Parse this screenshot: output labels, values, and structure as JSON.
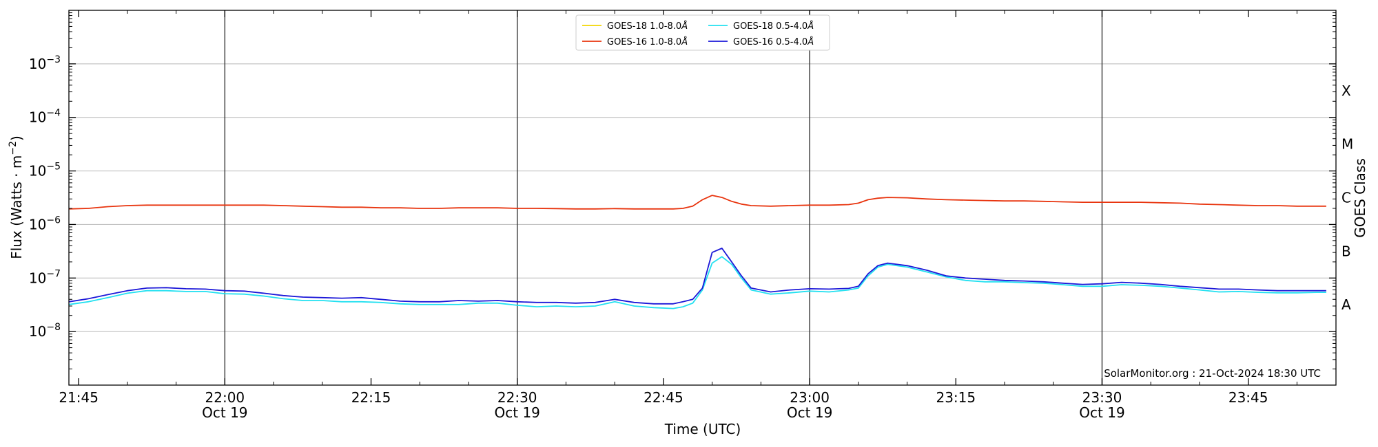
{
  "chart_data": {
    "type": "line",
    "xlabel": "Time (UTC)",
    "ylabel_main": "Flux (Watts · m",
    "ylabel_exp": "−2",
    "ylabel_close": ")",
    "right_axis_label": "GOES Class",
    "credit": "SolarMonitor.org : 21-Oct-2024 18:30 UTC",
    "y_scale": "log",
    "ylim": [
      1e-09,
      0.01
    ],
    "xlim": [
      "21:44",
      "23:54"
    ],
    "grid": "horizontal at decades",
    "legend_placement": "top-center",
    "y_ticks": [
      {
        "value": -8,
        "base": "10",
        "exp": "−8"
      },
      {
        "value": -7,
        "base": "10",
        "exp": "−7"
      },
      {
        "value": -6,
        "base": "10",
        "exp": "−6"
      },
      {
        "value": -5,
        "base": "10",
        "exp": "−5"
      },
      {
        "value": -4,
        "base": "10",
        "exp": "−4"
      },
      {
        "value": -3,
        "base": "10",
        "exp": "−3"
      }
    ],
    "x_ticks": [
      {
        "time": "21:45",
        "label": "21:45",
        "date": ""
      },
      {
        "time": "22:00",
        "label": "22:00",
        "date": "Oct 19"
      },
      {
        "time": "22:15",
        "label": "22:15",
        "date": ""
      },
      {
        "time": "22:30",
        "label": "22:30",
        "date": "Oct 19"
      },
      {
        "time": "22:45",
        "label": "22:45",
        "date": ""
      },
      {
        "time": "23:00",
        "label": "23:00",
        "date": "Oct 19"
      },
      {
        "time": "23:15",
        "label": "23:15",
        "date": ""
      },
      {
        "time": "23:30",
        "label": "23:30",
        "date": "Oct 19"
      },
      {
        "time": "23:45",
        "label": "23:45",
        "date": ""
      }
    ],
    "vlines": [
      "22:00",
      "22:30",
      "23:00",
      "23:30"
    ],
    "goes_classes": [
      {
        "label": "A",
        "value": 3.16e-08
      },
      {
        "label": "B",
        "value": 3.16e-07
      },
      {
        "label": "C",
        "value": 3.16e-06
      },
      {
        "label": "M",
        "value": 3.16e-05
      },
      {
        "label": "X",
        "value": 0.000316
      }
    ],
    "x_times": [
      "21:44",
      "21:46",
      "21:48",
      "21:50",
      "21:52",
      "21:54",
      "21:56",
      "21:58",
      "22:00",
      "22:02",
      "22:04",
      "22:06",
      "22:08",
      "22:10",
      "22:12",
      "22:14",
      "22:16",
      "22:18",
      "22:20",
      "22:22",
      "22:24",
      "22:26",
      "22:28",
      "22:30",
      "22:32",
      "22:34",
      "22:36",
      "22:38",
      "22:40",
      "22:42",
      "22:44",
      "22:46",
      "22:47",
      "22:48",
      "22:49",
      "22:50",
      "22:51",
      "22:52",
      "22:53",
      "22:54",
      "22:56",
      "22:58",
      "23:00",
      "23:02",
      "23:04",
      "23:05",
      "23:06",
      "23:07",
      "23:08",
      "23:10",
      "23:12",
      "23:14",
      "23:16",
      "23:18",
      "23:20",
      "23:22",
      "23:24",
      "23:26",
      "23:28",
      "23:30",
      "23:32",
      "23:34",
      "23:36",
      "23:38",
      "23:40",
      "23:42",
      "23:44",
      "23:46",
      "23:48",
      "23:50",
      "23:52",
      "23:53"
    ],
    "series": [
      {
        "name": "GOES-18 1.0-8.0",
        "unit_symbol": "Å",
        "color": "#f2d600",
        "values": []
      },
      {
        "name": "GOES-16 1.0-8.0",
        "unit_symbol": "Å",
        "color": "#e8340e",
        "values": [
          1.95e-06,
          2e-06,
          2.15e-06,
          2.25e-06,
          2.3e-06,
          2.3e-06,
          2.3e-06,
          2.3e-06,
          2.3e-06,
          2.3e-06,
          2.3e-06,
          2.25e-06,
          2.2e-06,
          2.15e-06,
          2.1e-06,
          2.1e-06,
          2.05e-06,
          2.05e-06,
          2e-06,
          2e-06,
          2.05e-06,
          2.05e-06,
          2.05e-06,
          2e-06,
          2e-06,
          1.98e-06,
          1.95e-06,
          1.95e-06,
          1.98e-06,
          1.95e-06,
          1.95e-06,
          1.95e-06,
          2e-06,
          2.2e-06,
          2.9e-06,
          3.5e-06,
          3.2e-06,
          2.7e-06,
          2.4e-06,
          2.25e-06,
          2.2e-06,
          2.25e-06,
          2.3e-06,
          2.3e-06,
          2.35e-06,
          2.5e-06,
          2.9e-06,
          3.1e-06,
          3.2e-06,
          3.15e-06,
          3e-06,
          2.9e-06,
          2.85e-06,
          2.8e-06,
          2.75e-06,
          2.75e-06,
          2.7e-06,
          2.65e-06,
          2.6e-06,
          2.6e-06,
          2.6e-06,
          2.6e-06,
          2.55e-06,
          2.5e-06,
          2.4e-06,
          2.35e-06,
          2.3e-06,
          2.25e-06,
          2.25e-06,
          2.2e-06,
          2.2e-06,
          2.2e-06
        ]
      },
      {
        "name": "GOES-18 0.5-4.0",
        "unit_symbol": "Å",
        "color": "#22e0f0",
        "values": [
          3.2e-08,
          3.6e-08,
          4.3e-08,
          5.2e-08,
          5.8e-08,
          5.8e-08,
          5.6e-08,
          5.6e-08,
          5.1e-08,
          5e-08,
          4.6e-08,
          4.1e-08,
          3.8e-08,
          3.8e-08,
          3.6e-08,
          3.6e-08,
          3.5e-08,
          3.3e-08,
          3.2e-08,
          3.2e-08,
          3.2e-08,
          3.4e-08,
          3.4e-08,
          3.1e-08,
          2.9e-08,
          3e-08,
          2.9e-08,
          3e-08,
          3.6e-08,
          3e-08,
          2.8e-08,
          2.7e-08,
          2.9e-08,
          3.4e-08,
          6e-08,
          1.9e-07,
          2.5e-07,
          1.8e-07,
          1e-07,
          6e-08,
          5e-08,
          5.3e-08,
          5.7e-08,
          5.5e-08,
          6e-08,
          6.5e-08,
          1.1e-07,
          1.6e-07,
          1.8e-07,
          1.6e-07,
          1.3e-07,
          1.05e-07,
          9e-08,
          8.5e-08,
          8.5e-08,
          8.2e-08,
          8e-08,
          7.5e-08,
          7e-08,
          7e-08,
          7.5e-08,
          7.3e-08,
          7e-08,
          6.5e-08,
          6e-08,
          5.5e-08,
          5.6e-08,
          5.4e-08,
          5.3e-08,
          5.3e-08,
          5.4e-08,
          5.4e-08
        ]
      },
      {
        "name": "GOES-16 0.5-4.0",
        "unit_symbol": "Å",
        "color": "#1c18d8",
        "values": [
          3.6e-08,
          4.1e-08,
          4.9e-08,
          5.8e-08,
          6.5e-08,
          6.6e-08,
          6.3e-08,
          6.2e-08,
          5.8e-08,
          5.7e-08,
          5.2e-08,
          4.7e-08,
          4.4e-08,
          4.3e-08,
          4.2e-08,
          4.3e-08,
          4e-08,
          3.7e-08,
          3.6e-08,
          3.6e-08,
          3.8e-08,
          3.7e-08,
          3.8e-08,
          3.6e-08,
          3.5e-08,
          3.5e-08,
          3.4e-08,
          3.5e-08,
          4e-08,
          3.5e-08,
          3.3e-08,
          3.3e-08,
          3.6e-08,
          4e-08,
          6.5e-08,
          3e-07,
          3.6e-07,
          2e-07,
          1.1e-07,
          6.5e-08,
          5.5e-08,
          6e-08,
          6.3e-08,
          6.2e-08,
          6.4e-08,
          7e-08,
          1.2e-07,
          1.7e-07,
          1.9e-07,
          1.7e-07,
          1.4e-07,
          1.1e-07,
          1e-07,
          9.5e-08,
          9e-08,
          8.8e-08,
          8.5e-08,
          8e-08,
          7.6e-08,
          7.8e-08,
          8.3e-08,
          8e-08,
          7.6e-08,
          7e-08,
          6.6e-08,
          6.2e-08,
          6.2e-08,
          6e-08,
          5.8e-08,
          5.8e-08,
          5.8e-08,
          5.8e-08
        ]
      }
    ]
  }
}
